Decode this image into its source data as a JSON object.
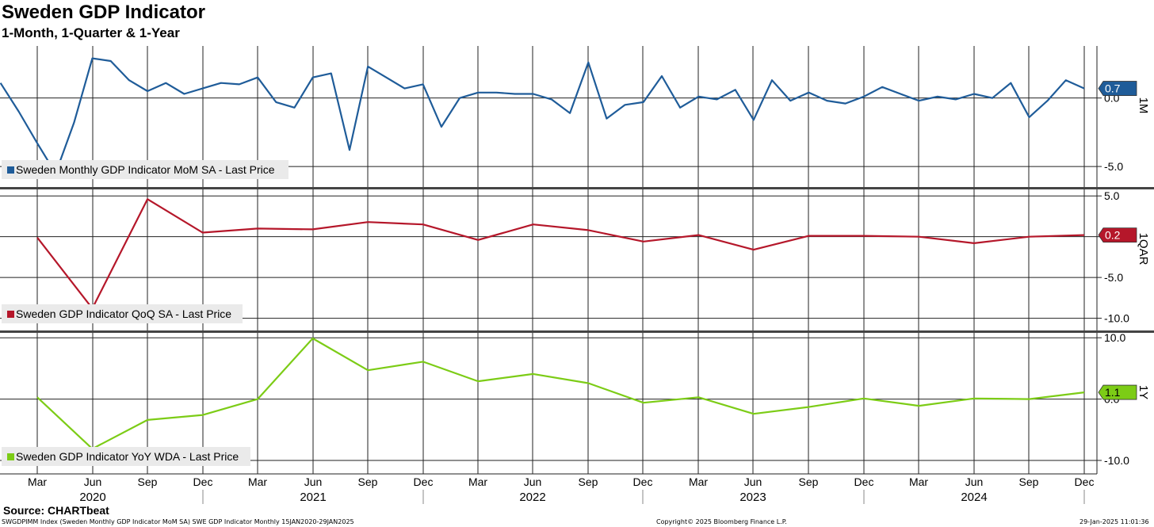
{
  "header": {
    "title": "Sweden GDP Indicator",
    "subtitle": "1-Month, 1-Quarter & 1-Year"
  },
  "footer": {
    "source": "Source: CHARTbeat",
    "info": "SWGDPIMM Index (Sweden Monthly GDP Indicator MoM SA) SWE GDP Indicator  Monthly 15JAN2020-29JAN2025",
    "copyright": "Copyright© 2025 Bloomberg Finance L.P.",
    "date": "29-Jan-2025 11:01:36"
  },
  "chart_data": [
    {
      "type": "line",
      "panel_label": "1M",
      "legend": "Sweden Monthly GDP Indicator MoM SA - Last Price",
      "color": "#1f5c99",
      "ylim": [
        -6.5,
        3.8
      ],
      "yticks": [
        0.0,
        -5.0
      ],
      "ytick_labels": [
        "0.0",
        "-5.0"
      ],
      "last_value_label": "0.7",
      "last_value": 0.7,
      "x": [
        "2020-01",
        "2020-02",
        "2020-03",
        "2020-04",
        "2020-05",
        "2020-06",
        "2020-07",
        "2020-08",
        "2020-09",
        "2020-10",
        "2020-11",
        "2020-12",
        "2021-01",
        "2021-02",
        "2021-03",
        "2021-04",
        "2021-05",
        "2021-06",
        "2021-07",
        "2021-08",
        "2021-09",
        "2021-10",
        "2021-11",
        "2021-12",
        "2022-01",
        "2022-02",
        "2022-03",
        "2022-04",
        "2022-05",
        "2022-06",
        "2022-07",
        "2022-08",
        "2022-09",
        "2022-10",
        "2022-11",
        "2022-12",
        "2023-01",
        "2023-02",
        "2023-03",
        "2023-04",
        "2023-05",
        "2023-06",
        "2023-07",
        "2023-08",
        "2023-09",
        "2023-10",
        "2023-11",
        "2023-12",
        "2024-01",
        "2024-02",
        "2024-03",
        "2024-04",
        "2024-05",
        "2024-06",
        "2024-07",
        "2024-08",
        "2024-09",
        "2024-10",
        "2024-11",
        "2024-12"
      ],
      "values": [
        1.1,
        -1.0,
        -3.3,
        -5.5,
        -1.8,
        2.9,
        2.7,
        1.3,
        0.5,
        1.1,
        0.3,
        0.7,
        1.1,
        1.0,
        1.5,
        -0.3,
        -0.7,
        1.5,
        1.8,
        -3.8,
        2.3,
        1.5,
        0.7,
        1.0,
        -2.1,
        0.0,
        0.4,
        0.4,
        0.3,
        0.3,
        -0.1,
        -1.1,
        2.6,
        -1.5,
        -0.5,
        -0.3,
        1.6,
        -0.7,
        0.1,
        -0.1,
        0.6,
        -1.6,
        1.3,
        -0.2,
        0.4,
        -0.2,
        -0.4,
        0.1,
        0.8,
        0.3,
        -0.2,
        0.1,
        -0.1,
        0.3,
        0.0,
        1.1,
        -1.4,
        -0.2,
        1.3,
        0.7
      ]
    },
    {
      "type": "line",
      "panel_label": "1QAR",
      "legend": "Sweden GDP Indicator QoQ SA - Last Price",
      "color": "#b5172a",
      "ylim": [
        -11.5,
        5.8
      ],
      "yticks": [
        5.0,
        0.0,
        -5.0,
        -10.0
      ],
      "ytick_labels": [
        "5.0",
        "",
        "-5.0",
        "-10.0"
      ],
      "last_value_label": "0.2",
      "last_value": 0.2,
      "x": [
        "2020-03",
        "2020-06",
        "2020-09",
        "2020-12",
        "2021-03",
        "2021-06",
        "2021-09",
        "2021-12",
        "2022-03",
        "2022-06",
        "2022-09",
        "2022-12",
        "2023-03",
        "2023-06",
        "2023-09",
        "2023-12",
        "2024-03",
        "2024-06",
        "2024-09",
        "2024-12"
      ],
      "values": [
        -0.1,
        -8.8,
        4.6,
        0.5,
        1.0,
        0.9,
        1.8,
        1.5,
        -0.4,
        1.5,
        0.8,
        -0.6,
        0.2,
        -1.6,
        0.1,
        0.1,
        0.0,
        -0.8,
        0.0,
        0.2
      ]
    },
    {
      "type": "line",
      "panel_label": "1Y",
      "legend": "Sweden GDP Indicator YoY WDA - Last Price",
      "color": "#7ccc16",
      "ylim": [
        -12.2,
        10.8
      ],
      "yticks": [
        10.0,
        0.0,
        -10.0
      ],
      "ytick_labels": [
        "10.0",
        "0.0",
        "-10.0"
      ],
      "last_value_label": "1.1",
      "last_value": 1.1,
      "x": [
        "2020-03",
        "2020-06",
        "2020-09",
        "2020-12",
        "2021-03",
        "2021-06",
        "2021-09",
        "2021-12",
        "2022-03",
        "2022-06",
        "2022-09",
        "2022-12",
        "2023-03",
        "2023-06",
        "2023-09",
        "2023-12",
        "2024-03",
        "2024-06",
        "2024-09",
        "2024-12"
      ],
      "values": [
        0.3,
        -8.1,
        -3.4,
        -2.6,
        0.0,
        9.9,
        4.7,
        6.1,
        2.9,
        4.1,
        2.6,
        -0.6,
        0.3,
        -2.4,
        -1.3,
        0.1,
        -1.1,
        0.1,
        0.0,
        1.1
      ]
    }
  ],
  "x_axis": {
    "tick_labels": [
      "Mar",
      "Jun",
      "Sep",
      "Dec",
      "Mar",
      "Jun",
      "Sep",
      "Dec",
      "Mar",
      "Jun",
      "Sep",
      "Dec",
      "Mar",
      "Jun",
      "Sep",
      "Dec",
      "Mar",
      "Jun",
      "Sep",
      "Dec"
    ],
    "year_labels": [
      "2020",
      "2021",
      "2022",
      "2023",
      "2024"
    ]
  }
}
